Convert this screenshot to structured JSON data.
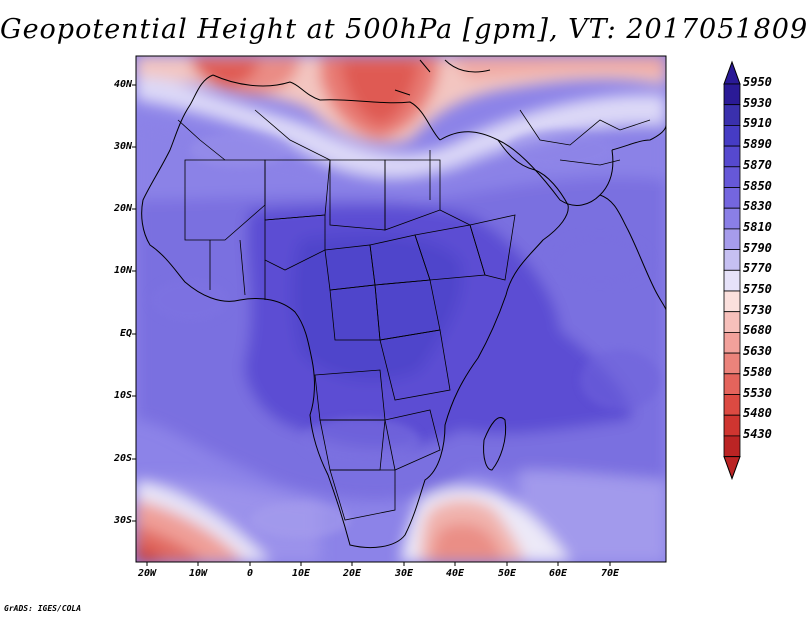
{
  "title": "Geopotential Height at 500hPa [gpm], VT: 2017051809",
  "lat_labels": [
    "40N",
    "30N",
    "20N",
    "10N",
    "EQ",
    "10S",
    "20S",
    "30S"
  ],
  "lon_labels": [
    "20W",
    "10W",
    "0",
    "10E",
    "20E",
    "30E",
    "40E",
    "50E",
    "60E",
    "70E"
  ],
  "colorbar": {
    "levels": [
      "5950",
      "5930",
      "5910",
      "5890",
      "5870",
      "5850",
      "5830",
      "5810",
      "5790",
      "5770",
      "5750",
      "5730",
      "5680",
      "5630",
      "5580",
      "5530",
      "5480",
      "5430"
    ],
    "colors": [
      "#2a1a96",
      "#3a30ad",
      "#463cc4",
      "#5649cf",
      "#6658d8",
      "#7466df",
      "#8a7fe6",
      "#a69ceb",
      "#c6c0f2",
      "#e6e2f9",
      "#fbe0dd",
      "#f7c0bb",
      "#f2a19b",
      "#eb837b",
      "#e4645c",
      "#dc4a42",
      "#cf3530",
      "#bb2424"
    ],
    "top_arrow_color": "#2a1a96",
    "bottom_arrow_color": "#bb2424"
  },
  "footer": "GrADS: IGES/COLA"
}
